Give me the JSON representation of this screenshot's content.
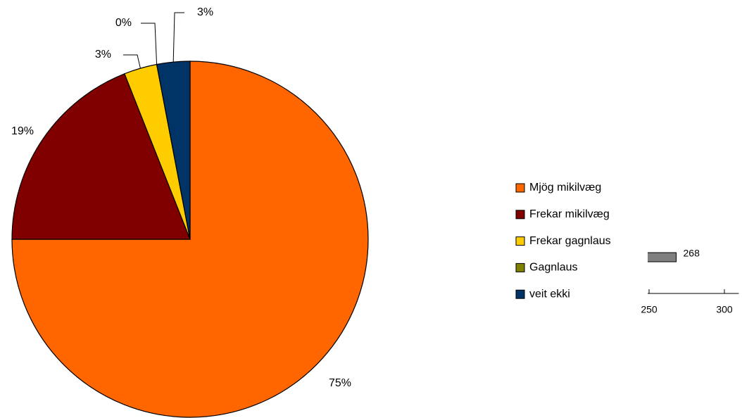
{
  "chart_data": [
    {
      "type": "pie",
      "categories": [
        "Mjög mikilvæg",
        "Frekar mikilvæg",
        "Frekar gagnlaus",
        "Gagnlaus",
        "veit ekki"
      ],
      "values": [
        75,
        19,
        3,
        0,
        3
      ],
      "value_labels": [
        "75%",
        "19%",
        "3%",
        "0%",
        "3%"
      ],
      "colors": [
        "#ff6600",
        "#800000",
        "#ffcc00",
        "#808000",
        "#003366"
      ],
      "legend": "right"
    },
    {
      "type": "barh",
      "values": [
        268
      ],
      "color": "#808080",
      "xlim": [
        240,
        310
      ],
      "xticks": [
        250,
        300
      ]
    }
  ]
}
